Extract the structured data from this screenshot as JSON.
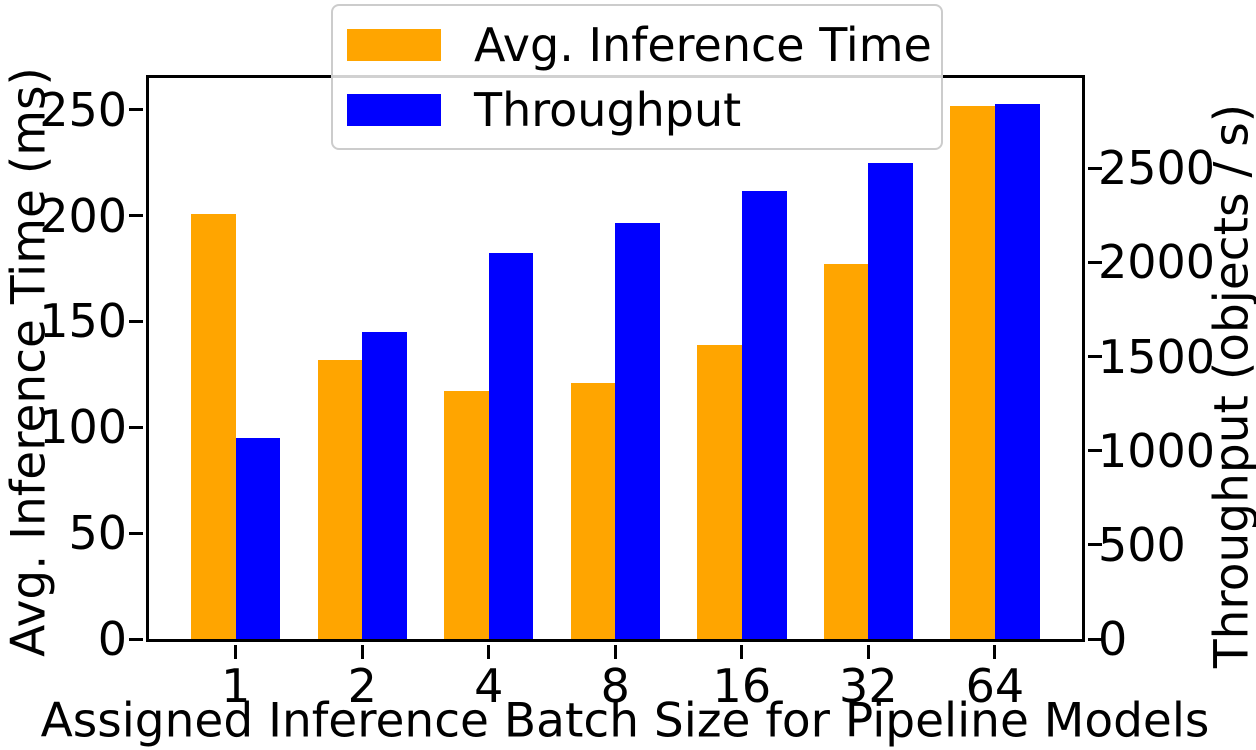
{
  "chart_data": {
    "type": "bar",
    "title": "",
    "xlabel": "Assigned Inference Batch Size for Pipeline Models",
    "ylabel_left": "Avg. Inference Time (ms)",
    "ylabel_right": "Throughput (objects / s)",
    "categories": [
      "1",
      "2",
      "4",
      "8",
      "16",
      "32",
      "64"
    ],
    "series": [
      {
        "name": "Avg. Inference Time",
        "axis": "left",
        "color": "#FFA500",
        "values": [
          201,
          132,
          117,
          121,
          139,
          177,
          252
        ]
      },
      {
        "name": "Throughput",
        "axis": "right",
        "color": "#0000FF",
        "values": [
          1070,
          1630,
          2050,
          2210,
          2380,
          2530,
          2840
        ]
      }
    ],
    "left_ticks": [
      0,
      50,
      100,
      150,
      200,
      250
    ],
    "right_ticks": [
      0,
      500,
      1000,
      1500,
      2000,
      2500
    ],
    "ylim_left": [
      0,
      265
    ],
    "ylim_right": [
      0,
      2980
    ],
    "legend_position": "upper center",
    "grid": false,
    "colors": {
      "avg_inference_time": "#FFA500",
      "throughput": "#0000FF",
      "spine": "#000000",
      "legend_border": "#cccccc"
    }
  }
}
